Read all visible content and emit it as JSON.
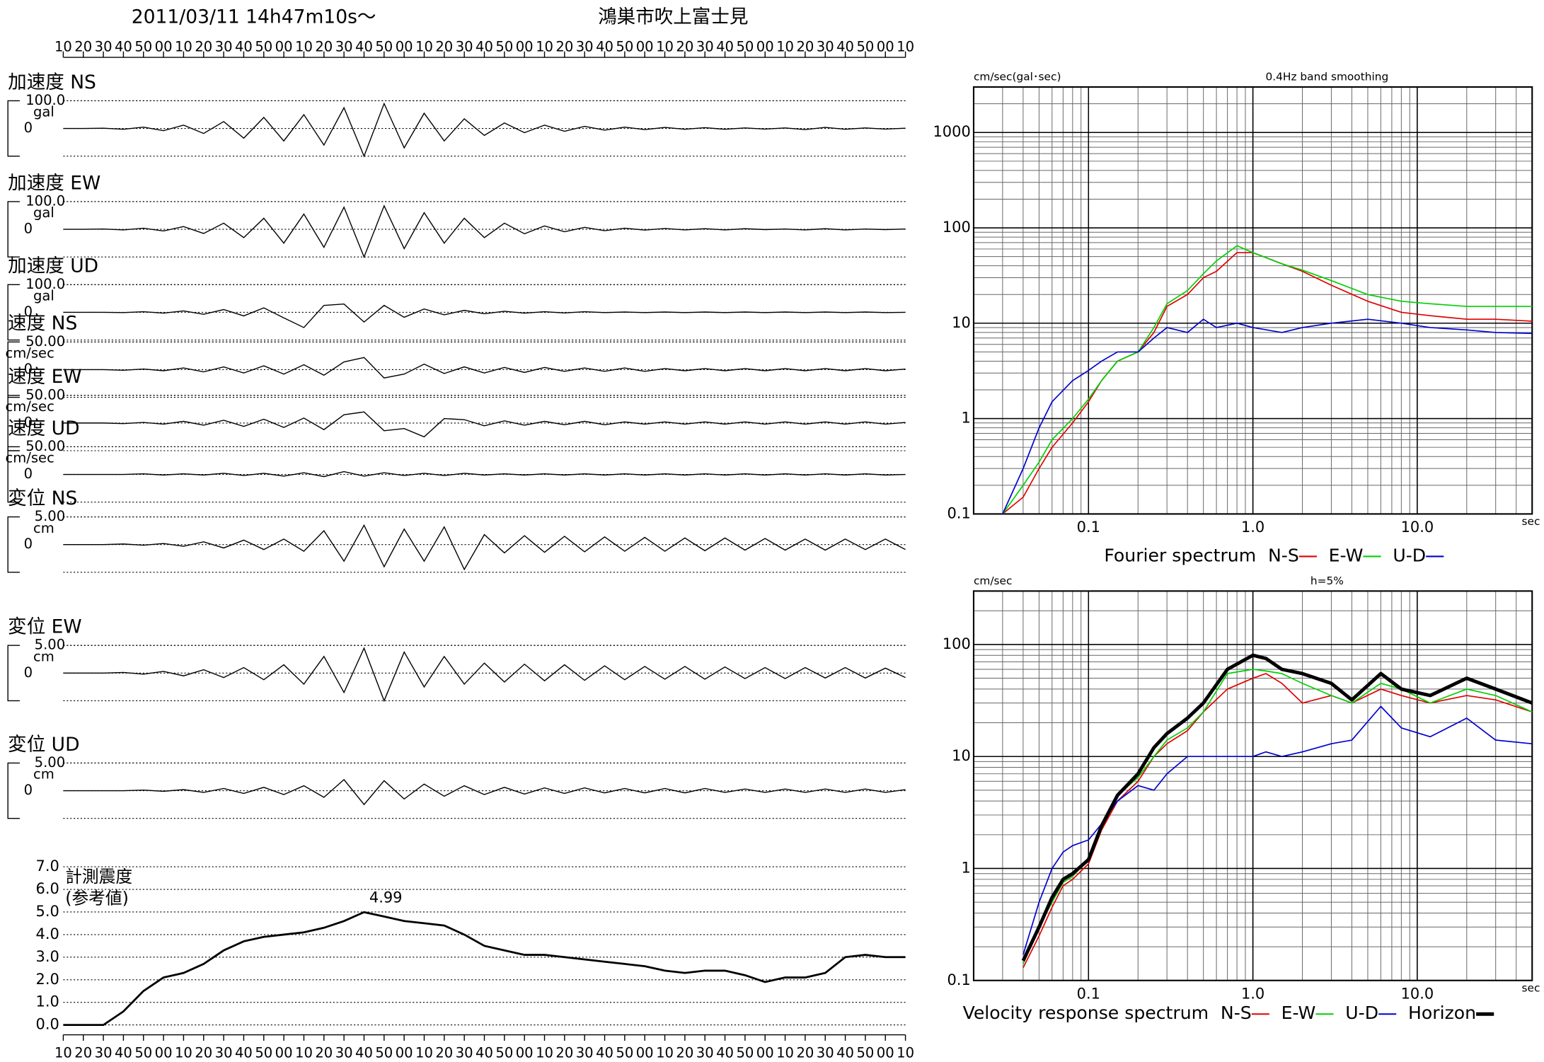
{
  "header": {
    "datetime": "2011/03/11  14h47m10s〜",
    "station": "鴻巣市吹上富士見"
  },
  "chart_data": [
    {
      "type": "waveforms",
      "time_labels": [
        "10",
        "20",
        "30",
        "40",
        "50",
        "00",
        "10",
        "20",
        "30",
        "40",
        "50",
        "00",
        "10",
        "20",
        "30",
        "40",
        "50",
        "00",
        "10",
        "20",
        "30",
        "40",
        "50",
        "00",
        "10",
        "20",
        "30",
        "40",
        "50",
        "00",
        "10",
        "20",
        "30",
        "40",
        "50",
        "00",
        "10",
        "20",
        "30",
        "40",
        "50",
        "00",
        "10"
      ],
      "x": [
        0,
        10,
        20,
        30,
        40,
        50,
        60,
        70,
        80,
        90,
        100,
        110,
        120,
        130,
        140,
        150,
        160,
        170,
        180,
        190,
        200,
        210,
        220,
        230,
        240,
        250,
        260,
        270,
        280,
        290,
        300,
        310,
        320,
        330,
        340,
        350,
        360,
        370,
        380,
        390,
        400,
        410,
        420
      ],
      "xlim": [
        0,
        420
      ],
      "traces": [
        {
          "title": "加速度 NS",
          "unit": "gal",
          "ylim": [
            -100,
            100
          ],
          "yticks": [
            {
              "value": 100,
              "label": "100.0"
            },
            0
          ],
          "values": [
            0,
            0,
            1,
            -3,
            5,
            -8,
            12,
            -18,
            25,
            -35,
            40,
            -45,
            50,
            -60,
            75,
            -100,
            90,
            -70,
            55,
            -45,
            35,
            -25,
            20,
            -15,
            12,
            -10,
            8,
            -6,
            5,
            -4,
            4,
            -3,
            3,
            -3,
            2,
            -2,
            2,
            -4,
            4,
            -3,
            2,
            -2,
            1
          ]
        },
        {
          "title": "加速度 EW",
          "unit": "gal",
          "ylim": [
            -100,
            100
          ],
          "yticks": [
            {
              "value": 100,
              "label": "100.0"
            },
            0
          ],
          "values": [
            0,
            0,
            1,
            -2,
            4,
            -6,
            10,
            -15,
            22,
            -30,
            40,
            -50,
            55,
            -65,
            80,
            -100,
            85,
            -70,
            60,
            -50,
            40,
            -30,
            22,
            -16,
            12,
            -9,
            7,
            -5,
            4,
            -3,
            3,
            -2,
            2,
            -2,
            2,
            -1,
            1,
            -2,
            2,
            -2,
            1,
            -1,
            1
          ]
        },
        {
          "title": "加速度 UD",
          "unit": "gal",
          "ylim": [
            -100,
            100
          ],
          "yticks": [
            {
              "value": 100,
              "label": "100.0"
            },
            0
          ],
          "values": [
            0,
            0,
            0,
            -1,
            2,
            -3,
            5,
            -7,
            10,
            -13,
            16,
            -20,
            -55,
            25,
            30,
            -35,
            25,
            -18,
            12,
            -9,
            7,
            -5,
            4,
            -3,
            2,
            -2,
            2,
            -1,
            1,
            -1,
            1,
            -1,
            1,
            -1,
            1,
            -1,
            1,
            -1,
            1,
            -1,
            1,
            -1,
            0
          ]
        },
        {
          "title": "速度 NS",
          "unit": "cm/sec",
          "ylim": [
            -50,
            50
          ],
          "yticks": [
            {
              "value": 50,
              "label": "50.00"
            },
            0
          ],
          "values": [
            0,
            0,
            0,
            -1,
            1,
            -2,
            3,
            -4,
            5,
            -6,
            7,
            -8,
            9,
            -10,
            14,
            22,
            -15,
            -8,
            10,
            -7,
            5,
            -6,
            4,
            -5,
            4,
            -3,
            3,
            -3,
            3,
            -3,
            2,
            -2,
            2,
            -2,
            2,
            -2,
            2,
            -2,
            2,
            -2,
            2,
            -2,
            1
          ]
        },
        {
          "title": "速度 EW",
          "unit": "cm/sec",
          "ylim": [
            -50,
            50
          ],
          "yticks": [
            {
              "value": 50,
              "label": "50.00"
            },
            0
          ],
          "values": [
            0,
            0,
            0,
            -1,
            1,
            -2,
            3,
            -4,
            5,
            -6,
            7,
            -8,
            9,
            -12,
            15,
            20,
            -14,
            -10,
            -25,
            8,
            6,
            -5,
            4,
            -4,
            3,
            -3,
            3,
            -3,
            2,
            -2,
            2,
            -2,
            2,
            -2,
            2,
            -2,
            2,
            -2,
            2,
            -2,
            2,
            -2,
            1
          ]
        },
        {
          "title": "速度 UD",
          "unit": "cm/sec",
          "ylim": [
            -50,
            50
          ],
          "yticks": [
            {
              "value": 50,
              "label": "50.00"
            },
            0
          ],
          "values": [
            0,
            0,
            0,
            0,
            1,
            -1,
            1,
            -1,
            2,
            -2,
            2,
            -3,
            3,
            -4,
            5,
            -3,
            3,
            -2,
            2,
            -2,
            2,
            -1,
            1,
            -1,
            1,
            -1,
            1,
            -1,
            1,
            -1,
            1,
            -1,
            1,
            -1,
            1,
            -1,
            1,
            -1,
            1,
            -1,
            1,
            -1,
            0
          ]
        },
        {
          "title": "変位 NS",
          "unit": "cm",
          "ylim": [
            -5,
            5
          ],
          "yticks": [
            {
              "value": 5,
              "label": "5.00"
            },
            0
          ],
          "values": [
            0,
            0,
            0,
            0.1,
            -0.1,
            0.2,
            -0.3,
            0.5,
            -0.6,
            0.8,
            -0.9,
            1.0,
            -1.2,
            2.5,
            -3.0,
            3.5,
            -4.0,
            2.8,
            -3.0,
            3.2,
            -4.5,
            1.8,
            -1.5,
            1.6,
            -1.4,
            1.5,
            -1.3,
            1.4,
            -1.2,
            1.3,
            -1.2,
            1.2,
            -1.1,
            1.2,
            -1.0,
            1.1,
            -1.0,
            1.0,
            -1.0,
            1.0,
            -0.9,
            1.0,
            -0.9
          ]
        },
        {
          "title": "変位 EW",
          "unit": "cm",
          "ylim": [
            -5,
            5
          ],
          "yticks": [
            {
              "value": 5,
              "label": "5.00"
            },
            0
          ],
          "values": [
            0,
            0,
            0,
            0.1,
            -0.2,
            0.3,
            -0.5,
            0.6,
            -0.8,
            1.0,
            -1.2,
            1.5,
            -2.0,
            3.0,
            -3.5,
            4.5,
            -5.0,
            3.8,
            -2.5,
            3.0,
            -2.0,
            1.8,
            -1.6,
            1.6,
            -1.4,
            1.5,
            -1.3,
            1.3,
            -1.2,
            1.2,
            -1.1,
            1.2,
            -1.1,
            1.1,
            -1.0,
            1.0,
            -1.0,
            1.0,
            -0.9,
            1.0,
            -0.9,
            0.9,
            -0.8
          ]
        },
        {
          "title": "変位 UD",
          "unit": "cm",
          "ylim": [
            -5,
            5
          ],
          "yticks": [
            {
              "value": 5,
              "label": "5.00"
            },
            0
          ],
          "values": [
            0,
            0,
            0,
            0,
            0.1,
            -0.1,
            0.2,
            -0.3,
            0.4,
            -0.5,
            0.6,
            -0.7,
            0.9,
            -1.2,
            2.0,
            -2.5,
            1.8,
            -1.5,
            1.2,
            -1.0,
            0.9,
            -0.7,
            0.6,
            -0.6,
            0.5,
            -0.5,
            0.5,
            -0.4,
            0.4,
            -0.4,
            0.4,
            -0.4,
            0.4,
            -0.3,
            0.3,
            -0.3,
            0.3,
            -0.3,
            0.3,
            -0.3,
            0.3,
            -0.3,
            0.2
          ]
        }
      ],
      "intensity": {
        "title": "計測震度",
        "subtitle": "(参考値)",
        "ylim": [
          0,
          7
        ],
        "yticks": [
          {
            "value": 0,
            "label": "0.0"
          },
          {
            "value": 1,
            "label": "1.0"
          },
          {
            "value": 2,
            "label": "2.0"
          },
          {
            "value": 3,
            "label": "3.0"
          },
          {
            "value": 4,
            "label": "4.0"
          },
          {
            "value": 5,
            "label": "5.0"
          },
          {
            "value": 6,
            "label": "6.0"
          },
          {
            "value": 7,
            "label": "7.0"
          }
        ],
        "values": [
          0,
          0,
          0,
          0.6,
          1.5,
          2.1,
          2.3,
          2.7,
          3.3,
          3.7,
          3.9,
          4.0,
          4.1,
          4.3,
          4.6,
          4.99,
          4.8,
          4.6,
          4.5,
          4.4,
          4.0,
          3.5,
          3.3,
          3.1,
          3.1,
          3.0,
          2.9,
          2.8,
          2.7,
          2.6,
          2.4,
          2.3,
          2.4,
          2.4,
          2.2,
          1.9,
          2.1,
          2.1,
          2.3,
          3.0,
          3.1,
          3.0,
          3.0
        ],
        "labeled_point": 15
      }
    },
    {
      "type": "spectrum",
      "title": "Fourier spectrum",
      "subtitle": "0.4Hz band smoothing",
      "y_label": "cm/sec(gal･sec)",
      "x_label": "sec",
      "log_x": true,
      "log_y": true,
      "grid": true,
      "xlim": [
        0.02,
        50
      ],
      "ylim": [
        0.1,
        3000
      ],
      "xticks": [
        0.1,
        {
          "value": 1,
          "label": "1.0"
        },
        {
          "value": 10,
          "label": "10.0"
        }
      ],
      "yticks": [
        0.1,
        1,
        10,
        100,
        1000
      ],
      "x": [
        0.03,
        0.04,
        0.05,
        0.06,
        0.08,
        0.1,
        0.12,
        0.15,
        0.2,
        0.25,
        0.3,
        0.4,
        0.5,
        0.6,
        0.8,
        1.0,
        1.5,
        2,
        3,
        5,
        8,
        12,
        20,
        30,
        50
      ],
      "series": [
        {
          "name": "N-S",
          "color": "#e00000",
          "values": [
            0.1,
            0.15,
            0.3,
            0.5,
            0.9,
            1.5,
            2.5,
            4,
            5,
            8,
            15,
            20,
            30,
            35,
            55,
            55,
            42,
            35,
            25,
            17,
            13,
            12,
            11,
            11,
            10.5
          ]
        },
        {
          "name": "E-W",
          "color": "#00d000",
          "values": [
            0.1,
            0.2,
            0.35,
            0.6,
            1.0,
            1.6,
            2.5,
            4,
            5,
            9,
            16,
            22,
            33,
            45,
            65,
            55,
            42,
            36,
            28,
            20,
            17,
            16,
            15,
            15,
            15
          ]
        },
        {
          "name": "U-D",
          "color": "#0000d0",
          "values": [
            0.1,
            0.3,
            0.8,
            1.5,
            2.5,
            3.2,
            4,
            5,
            5,
            7,
            9,
            8,
            11,
            9,
            10,
            9,
            8,
            9,
            10,
            11,
            10,
            9,
            8.5,
            8,
            7.8
          ]
        }
      ]
    },
    {
      "type": "spectrum",
      "title": "Velocity response spectrum",
      "subtitle": "h=5%",
      "y_label": "cm/sec",
      "x_label": "sec",
      "log_x": true,
      "log_y": true,
      "grid": true,
      "xlim": [
        0.02,
        50
      ],
      "ylim": [
        0.1,
        300
      ],
      "xticks": [
        0.1,
        {
          "value": 1,
          "label": "1.0"
        },
        {
          "value": 10,
          "label": "10.0"
        }
      ],
      "yticks": [
        0.1,
        1,
        10,
        100
      ],
      "x": [
        0.04,
        0.05,
        0.06,
        0.07,
        0.08,
        0.1,
        0.12,
        0.15,
        0.2,
        0.25,
        0.3,
        0.4,
        0.5,
        0.7,
        1.0,
        1.2,
        1.5,
        2,
        3,
        4,
        6,
        8,
        12,
        20,
        30,
        50
      ],
      "series": [
        {
          "name": "N-S",
          "color": "#e00000",
          "values": [
            0.13,
            0.25,
            0.45,
            0.7,
            0.8,
            1.1,
            2.2,
            4,
            6,
            10,
            13,
            17,
            25,
            40,
            50,
            55,
            45,
            30,
            35,
            30,
            40,
            35,
            30,
            35,
            32,
            25
          ]
        },
        {
          "name": "E-W",
          "color": "#00d000",
          "values": [
            0.14,
            0.3,
            0.5,
            0.75,
            0.85,
            1.2,
            2.3,
            4.5,
            6.5,
            10,
            14,
            18,
            25,
            55,
            60,
            58,
            55,
            45,
            35,
            30,
            45,
            40,
            30,
            40,
            35,
            25
          ]
        },
        {
          "name": "U-D",
          "color": "#0000d0",
          "values": [
            0.17,
            0.5,
            1.0,
            1.4,
            1.6,
            1.8,
            2.5,
            4,
            5.5,
            5,
            7,
            10,
            10,
            10,
            10,
            11,
            10,
            11,
            13,
            14,
            28,
            18,
            15,
            22,
            14,
            13
          ]
        },
        {
          "name": "Horizon",
          "color": "#000000",
          "linewidth": 3.5,
          "values": [
            0.15,
            0.3,
            0.55,
            0.8,
            0.9,
            1.2,
            2.4,
            4.5,
            7,
            12,
            16,
            22,
            30,
            60,
            80,
            75,
            60,
            55,
            45,
            32,
            55,
            40,
            35,
            50,
            40,
            30
          ]
        }
      ]
    }
  ]
}
